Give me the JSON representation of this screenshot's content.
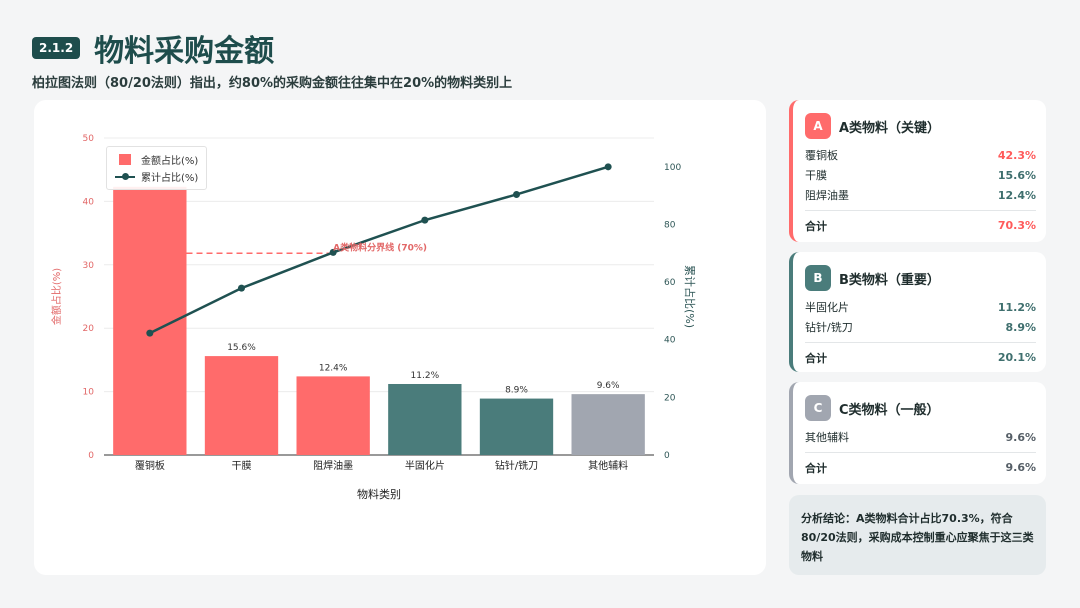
{
  "header": {
    "section": "2.1.2",
    "title": "物料采购金额",
    "subtitle": "柏拉图法则（80/20法则）指出，约80%的采购金额往往集中在20%的物料类别上"
  },
  "chart_data": {
    "type": "bar",
    "categories": [
      "覆铜板",
      "干膜",
      "阻焊油墨",
      "半固化片",
      "钻针/铣刀",
      "其他辅料"
    ],
    "values": [
      42.3,
      15.6,
      12.4,
      11.2,
      8.9,
      9.6
    ],
    "value_labels": [
      "",
      "15.6%",
      "12.4%",
      "11.2%",
      "8.9%",
      "9.6%"
    ],
    "bar_colors": [
      "#ff6b6b",
      "#ff6b6b",
      "#ff6b6b",
      "#4a7c7b",
      "#4a7c7b",
      "#a1a6b0"
    ],
    "cumulative": [
      42.3,
      57.9,
      70.3,
      81.5,
      90.4,
      100.0
    ],
    "xlabel": "物料类别",
    "ylabel": "金额占比(%)",
    "y2label": "累计占比(%)",
    "ylim": [
      0,
      50
    ],
    "y2lim": [
      0,
      110
    ],
    "yticks": [
      0,
      10,
      20,
      30,
      40,
      50
    ],
    "y2ticks": [
      0,
      20,
      40,
      60,
      80,
      100
    ],
    "legend": [
      "金额占比(%)",
      "累计占比(%)"
    ],
    "threshold": {
      "value": 70,
      "label": "A类物料分界线 (70%)"
    },
    "grid": true,
    "colors": {
      "bar_a": "#ff6b6b",
      "bar_b": "#4a7c7b",
      "bar_c": "#a1a6b0",
      "line": "#1f5151",
      "threshold": "#ff6b6b"
    }
  },
  "categories_panel": [
    {
      "letter": "A",
      "name": "A类物料（关键）",
      "color": "#ff6b6b",
      "items": [
        {
          "label": "覆铜板",
          "value": "42.3%"
        },
        {
          "label": "干膜",
          "value": "15.6%"
        },
        {
          "label": "阻焊油墨",
          "value": "12.4%"
        }
      ],
      "total_label": "合计",
      "total": "70.3%"
    },
    {
      "letter": "B",
      "name": "B类物料（重要）",
      "color": "#4a7c7b",
      "items": [
        {
          "label": "半固化片",
          "value": "11.2%"
        },
        {
          "label": "钻针/铣刀",
          "value": "8.9%"
        }
      ],
      "total_label": "合计",
      "total": "20.1%"
    },
    {
      "letter": "C",
      "name": "C类物料（一般）",
      "color": "#a1a6b0",
      "items": [
        {
          "label": "其他辅料",
          "value": "9.6%"
        }
      ],
      "total_label": "合计",
      "total": "9.6%"
    }
  ],
  "conclusion": "分析结论：A类物料合计占比70.3%，符合80/20法则，采购成本控制重心应聚焦于这三类物料"
}
